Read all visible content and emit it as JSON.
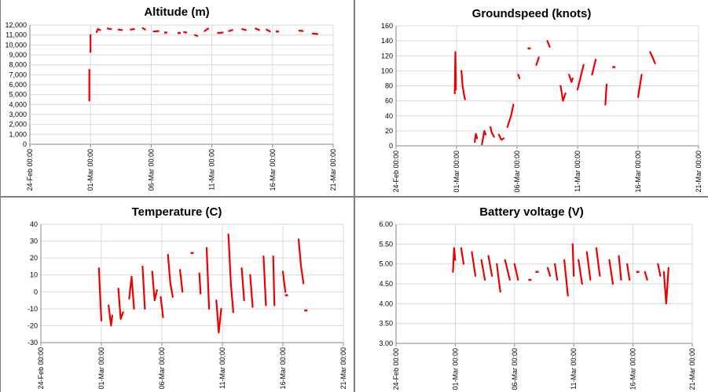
{
  "colors": {
    "series": "#ee0000",
    "grid": "#d9d9d9",
    "axis": "#868686"
  },
  "chart_data": [
    {
      "type": "line",
      "title": "Altitude (m)",
      "ylim": [
        0,
        12000
      ],
      "ytick_step": 1000,
      "ytick_labels": [
        "0",
        "1,000",
        "2,000",
        "3,000",
        "4,000",
        "5,000",
        "6,000",
        "7,000",
        "8,000",
        "9,000",
        "10,000",
        "11,000",
        "12,000"
      ],
      "xlim": [
        0,
        25
      ],
      "xtick_labels": [
        "24-Feb 00:00",
        "01-Mar 00:00",
        "06-Mar 00:00",
        "11-Mar 00:00",
        "16-Mar 00:00",
        "21-Mar 00:00"
      ],
      "grid": true,
      "segments": [
        {
          "x": [
            4.9,
            4.9
          ],
          "y": [
            4400,
            7500
          ]
        },
        {
          "x": [
            5.0,
            5.0
          ],
          "y": [
            9300,
            11000
          ]
        },
        {
          "x": [
            5.5,
            5.6,
            5.8
          ],
          "y": [
            11300,
            11600,
            11500
          ]
        },
        {
          "x": [
            6.4,
            6.7
          ],
          "y": [
            11650,
            11600
          ]
        },
        {
          "x": [
            7.3,
            7.6
          ],
          "y": [
            11550,
            11500
          ]
        },
        {
          "x": [
            8.3,
            8.6
          ],
          "y": [
            11550,
            11600
          ]
        },
        {
          "x": [
            9.3,
            9.5
          ],
          "y": [
            11700,
            11550
          ]
        },
        {
          "x": [
            10.2,
            10.6
          ],
          "y": [
            11350,
            11400
          ]
        },
        {
          "x": [
            11.2
          ],
          "y": [
            11250
          ]
        },
        {
          "x": [
            12.3
          ],
          "y": [
            11200
          ]
        },
        {
          "x": [
            12.7,
            12.9
          ],
          "y": [
            11300,
            11250
          ]
        },
        {
          "x": [
            13.6,
            13.8
          ],
          "y": [
            11000,
            10900
          ]
        },
        {
          "x": [
            14.4,
            14.7
          ],
          "y": [
            11400,
            11650
          ]
        },
        {
          "x": [
            15.5,
            15.9
          ],
          "y": [
            11200,
            11250
          ]
        },
        {
          "x": [
            16.4,
            16.7
          ],
          "y": [
            11400,
            11500
          ]
        },
        {
          "x": [
            17.5,
            17.8
          ],
          "y": [
            11600,
            11500
          ]
        },
        {
          "x": [
            18.6,
            18.9
          ],
          "y": [
            11650,
            11500
          ]
        },
        {
          "x": [
            19.5,
            19.8
          ],
          "y": [
            11550,
            11350
          ]
        },
        {
          "x": [
            20.4
          ],
          "y": [
            11350
          ]
        },
        {
          "x": [
            22.2,
            22.5
          ],
          "y": [
            11450,
            11400
          ]
        },
        {
          "x": [
            23.3,
            23.7
          ],
          "y": [
            11150,
            11100
          ]
        }
      ]
    },
    {
      "type": "line",
      "title": "Groundspeed (knots)",
      "ylim": [
        0,
        160
      ],
      "ytick_step": 20,
      "ytick_labels": [
        "0",
        "20",
        "40",
        "60",
        "80",
        "100",
        "120",
        "140",
        "160"
      ],
      "xlim": [
        0,
        25
      ],
      "xtick_labels": [
        "24-Feb 00:00",
        "01-Mar 00:00",
        "06-Mar 00:00",
        "11-Mar 00:00",
        "16-Mar 00:00",
        "21-Mar 00:00"
      ],
      "grid": true,
      "segments": [
        {
          "x": [
            4.85,
            4.9,
            4.95
          ],
          "y": [
            70,
            125,
            75
          ]
        },
        {
          "x": [
            5.4,
            5.5,
            5.6,
            5.7
          ],
          "y": [
            100,
            80,
            70,
            62
          ]
        },
        {
          "x": [
            6.5,
            6.6,
            6.7
          ],
          "y": [
            5,
            16,
            10
          ]
        },
        {
          "x": [
            7.1,
            7.3,
            7.4
          ],
          "y": [
            2,
            20,
            15
          ]
        },
        {
          "x": [
            7.8,
            7.9,
            8.1
          ],
          "y": [
            25,
            18,
            12
          ]
        },
        {
          "x": [
            8.5,
            8.7,
            8.9
          ],
          "y": [
            15,
            8,
            10
          ]
        },
        {
          "x": [
            9.2,
            9.5,
            9.7
          ],
          "y": [
            25,
            40,
            55
          ]
        },
        {
          "x": [
            10.1,
            10.2
          ],
          "y": [
            95,
            90
          ]
        },
        {
          "x": [
            11.0
          ],
          "y": [
            130
          ]
        },
        {
          "x": [
            11.6,
            11.8
          ],
          "y": [
            108,
            118
          ]
        },
        {
          "x": [
            12.5,
            12.7
          ],
          "y": [
            140,
            132
          ]
        },
        {
          "x": [
            13.6,
            13.8,
            14.0
          ],
          "y": [
            80,
            60,
            70
          ]
        },
        {
          "x": [
            14.3,
            14.5,
            14.6
          ],
          "y": [
            95,
            85,
            90
          ]
        },
        {
          "x": [
            15.0,
            15.3,
            15.5
          ],
          "y": [
            75,
            95,
            108
          ]
        },
        {
          "x": [
            16.2,
            16.5
          ],
          "y": [
            95,
            115
          ]
        },
        {
          "x": [
            17.3,
            17.4
          ],
          "y": [
            55,
            82
          ]
        },
        {
          "x": [
            18.0
          ],
          "y": [
            105
          ]
        },
        {
          "x": [
            20.0,
            20.3
          ],
          "y": [
            65,
            95
          ]
        },
        {
          "x": [
            21.0,
            21.2,
            21.4
          ],
          "y": [
            125,
            118,
            110
          ]
        }
      ]
    },
    {
      "type": "line",
      "title": "Temperature (C)",
      "ylim": [
        -30,
        40
      ],
      "ytick_step": 10,
      "ytick_labels": [
        "-30",
        "-20",
        "-10",
        "0",
        "10",
        "20",
        "30",
        "40"
      ],
      "xlim": [
        0,
        25
      ],
      "xtick_labels": [
        "24-Feb 00:00",
        "01-Mar 00:00",
        "06-Mar 00:00",
        "11-Mar 00:00",
        "16-Mar 00:00",
        "21-Mar 00:00"
      ],
      "grid": true,
      "segments": [
        {
          "x": [
            4.8,
            4.9,
            5.0
          ],
          "y": [
            14,
            -3,
            -17
          ]
        },
        {
          "x": [
            5.6,
            5.8,
            5.9
          ],
          "y": [
            -8,
            -20,
            -14
          ]
        },
        {
          "x": [
            6.4,
            6.6,
            6.8
          ],
          "y": [
            2,
            -16,
            -12
          ]
        },
        {
          "x": [
            7.3,
            7.5,
            7.7
          ],
          "y": [
            -4,
            9,
            -10
          ]
        },
        {
          "x": [
            8.4,
            8.6
          ],
          "y": [
            15,
            -10
          ]
        },
        {
          "x": [
            9.2,
            9.4,
            9.6
          ],
          "y": [
            12,
            -5,
            1
          ]
        },
        {
          "x": [
            9.9,
            10.1
          ],
          "y": [
            -3,
            -15
          ]
        },
        {
          "x": [
            10.5,
            10.7,
            10.9
          ],
          "y": [
            22,
            5,
            -3
          ]
        },
        {
          "x": [
            11.5,
            11.7
          ],
          "y": [
            13,
            0
          ]
        },
        {
          "x": [
            12.5
          ],
          "y": [
            23
          ]
        },
        {
          "x": [
            13.1,
            13.2
          ],
          "y": [
            11,
            -1
          ]
        },
        {
          "x": [
            13.7,
            13.9
          ],
          "y": [
            26,
            -10
          ]
        },
        {
          "x": [
            14.5,
            14.7,
            14.9
          ],
          "y": [
            -5,
            -24,
            -10
          ]
        },
        {
          "x": [
            15.5,
            15.7,
            15.9
          ],
          "y": [
            34,
            5,
            -12
          ]
        },
        {
          "x": [
            16.6,
            16.8
          ],
          "y": [
            14,
            -5
          ]
        },
        {
          "x": [
            17.3,
            17.5
          ],
          "y": [
            10,
            -9
          ]
        },
        {
          "x": [
            18.4,
            18.6
          ],
          "y": [
            21,
            -8
          ]
        },
        {
          "x": [
            19.2,
            19.3
          ],
          "y": [
            21,
            -8
          ]
        },
        {
          "x": [
            20.0,
            20.2
          ],
          "y": [
            12,
            0
          ]
        },
        {
          "x": [
            20.3
          ],
          "y": [
            -2
          ]
        },
        {
          "x": [
            21.3,
            21.5,
            21.7
          ],
          "y": [
            31,
            15,
            5
          ]
        },
        {
          "x": [
            21.9
          ],
          "y": [
            -11
          ]
        }
      ]
    },
    {
      "type": "line",
      "title": "Battery voltage (V)",
      "ylim": [
        3.0,
        6.0
      ],
      "ytick_step": 0.5,
      "ytick_labels": [
        "3.00",
        "3.50",
        "4.00",
        "4.50",
        "5.00",
        "5.50",
        "6.00"
      ],
      "xlim": [
        0,
        25
      ],
      "xtick_labels": [
        "24-Feb 00:00",
        "01-Mar 00:00",
        "06-Mar 00:00",
        "11-Mar 00:00",
        "16-Mar 00:00",
        "21-Mar 00:00"
      ],
      "grid": true,
      "segments": [
        {
          "x": [
            4.8,
            4.9,
            5.0
          ],
          "y": [
            4.8,
            5.4,
            5.1
          ]
        },
        {
          "x": [
            5.5,
            5.7
          ],
          "y": [
            5.4,
            5.0
          ]
        },
        {
          "x": [
            6.4,
            6.7
          ],
          "y": [
            5.3,
            4.7
          ]
        },
        {
          "x": [
            7.2,
            7.5
          ],
          "y": [
            5.1,
            4.6
          ]
        },
        {
          "x": [
            7.8,
            8.1
          ],
          "y": [
            5.2,
            4.7
          ]
        },
        {
          "x": [
            8.5,
            8.8
          ],
          "y": [
            5.0,
            4.3
          ]
        },
        {
          "x": [
            9.2,
            9.6
          ],
          "y": [
            5.1,
            4.6
          ]
        },
        {
          "x": [
            10.0,
            10.3
          ],
          "y": [
            5.0,
            4.6
          ]
        },
        {
          "x": [
            11.3
          ],
          "y": [
            4.6
          ]
        },
        {
          "x": [
            11.9
          ],
          "y": [
            4.8
          ]
        },
        {
          "x": [
            12.8,
            13.0
          ],
          "y": [
            4.9,
            4.7
          ]
        },
        {
          "x": [
            13.4,
            13.6
          ],
          "y": [
            5.0,
            4.6
          ]
        },
        {
          "x": [
            14.2,
            14.5
          ],
          "y": [
            5.1,
            4.2
          ]
        },
        {
          "x": [
            14.9,
            15.0
          ],
          "y": [
            5.5,
            4.7
          ]
        },
        {
          "x": [
            15.4,
            15.7
          ],
          "y": [
            5.1,
            4.5
          ]
        },
        {
          "x": [
            16.1,
            16.4
          ],
          "y": [
            5.3,
            4.6
          ]
        },
        {
          "x": [
            16.9,
            17.2
          ],
          "y": [
            5.4,
            4.7
          ]
        },
        {
          "x": [
            18.0,
            18.3
          ],
          "y": [
            5.1,
            4.5
          ]
        },
        {
          "x": [
            18.8,
            19.0
          ],
          "y": [
            5.2,
            4.6
          ]
        },
        {
          "x": [
            19.5,
            19.7
          ],
          "y": [
            5.0,
            4.6
          ]
        },
        {
          "x": [
            20.4
          ],
          "y": [
            4.8
          ]
        },
        {
          "x": [
            21.0,
            21.2
          ],
          "y": [
            4.8,
            4.6
          ]
        },
        {
          "x": [
            22.1,
            22.3
          ],
          "y": [
            5.0,
            4.7
          ]
        },
        {
          "x": [
            22.6,
            22.8,
            23.0
          ],
          "y": [
            4.8,
            4.0,
            4.9
          ]
        }
      ]
    }
  ]
}
